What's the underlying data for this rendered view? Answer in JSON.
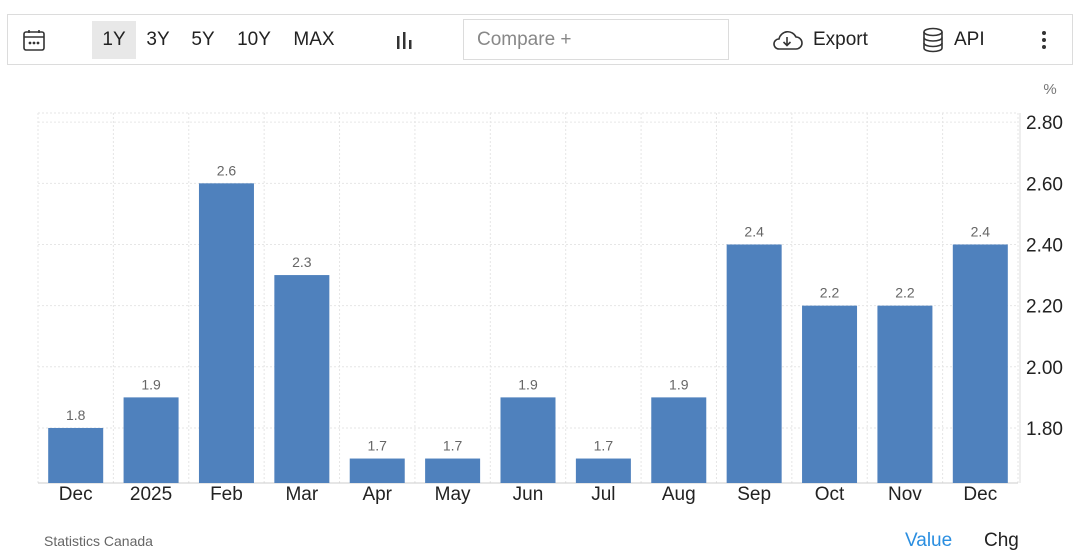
{
  "toolbar": {
    "ranges": [
      "1Y",
      "3Y",
      "5Y",
      "10Y",
      "MAX"
    ],
    "active_range": "1Y",
    "compare_placeholder": "Compare +",
    "export_label": "Export",
    "api_label": "API"
  },
  "footer": {
    "source": "Statistics Canada",
    "value_label": "Value",
    "chg_label": "Chg"
  },
  "colors": {
    "bar": "#4f81bd",
    "active_tab_bg": "#e8e8e8",
    "value_link": "#2a8ee0"
  },
  "chart_data": {
    "type": "bar",
    "categories": [
      "Dec",
      "2025",
      "Feb",
      "Mar",
      "Apr",
      "May",
      "Jun",
      "Jul",
      "Aug",
      "Sep",
      "Oct",
      "Nov",
      "Dec"
    ],
    "values": [
      1.8,
      1.9,
      2.6,
      2.3,
      1.7,
      1.7,
      1.9,
      1.7,
      1.9,
      2.4,
      2.2,
      2.2,
      2.4
    ],
    "unit": "%",
    "yticks": [
      "1.80",
      "2.00",
      "2.20",
      "2.40",
      "2.60",
      "2.80"
    ],
    "ylim": [
      1.62,
      2.83
    ],
    "grid": true,
    "axis_position": "right"
  }
}
